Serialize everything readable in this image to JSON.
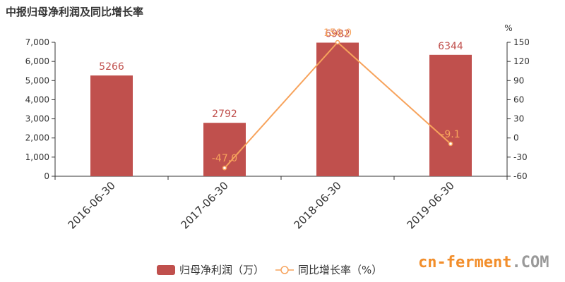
{
  "title": "中报归母净利润及同比增长率",
  "chart_data": {
    "type": "bar",
    "categories": [
      "2016-06-30",
      "2017-06-30",
      "2018-06-30",
      "2019-06-30"
    ],
    "series": [
      {
        "name": "归母净利润（万）",
        "type": "bar",
        "axis": "left",
        "values": [
          5266,
          2792,
          6982,
          6344
        ],
        "labels": [
          "5266",
          "2792",
          "6982",
          "6344"
        ],
        "color": "#c0504d"
      },
      {
        "name": "同比增长率（%）",
        "type": "line",
        "axis": "right",
        "values": [
          null,
          -47.0,
          150.0,
          -9.1
        ],
        "labels": [
          "",
          "-47.0",
          "150.0",
          "-9.1"
        ],
        "color": "#f7a35c"
      }
    ],
    "y_left": {
      "min": 0,
      "max": 7000,
      "ticks": [
        "0",
        "1,000",
        "2,000",
        "3,000",
        "4,000",
        "5,000",
        "6,000",
        "7,000"
      ]
    },
    "y_right": {
      "min": -60,
      "max": 150,
      "unit": "%",
      "ticks": [
        "-60",
        "-30",
        "0",
        "30",
        "60",
        "90",
        "120",
        "150"
      ]
    },
    "grid": false,
    "legend": "bottom"
  },
  "watermark": {
    "part1": "cn-ferment",
    "part2": ".COM"
  }
}
